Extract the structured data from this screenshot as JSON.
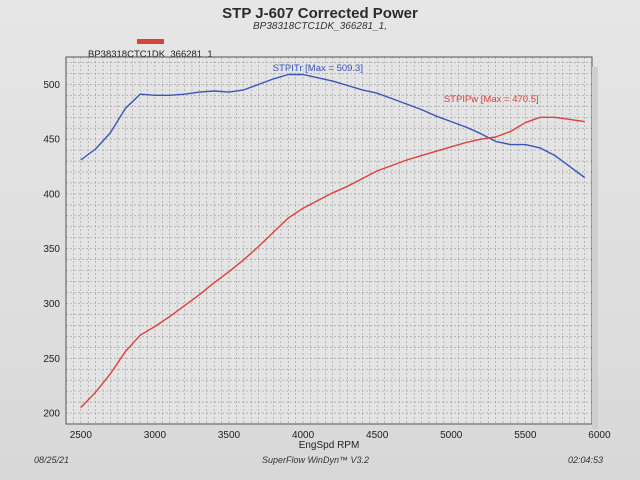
{
  "header": {
    "title": "STP J-607 Corrected Power",
    "subtitle": "BP38318CTC1DK_366281_1,"
  },
  "legend": {
    "run_label": "BP38318CTC1DK_366281_1",
    "run_color": "#d9413d"
  },
  "footer": {
    "date": "08/25/21",
    "software": "SuperFlow WinDyn™ V3.2",
    "time": "02:04:53"
  },
  "colors": {
    "torque": "#3a55b8",
    "power": "#d9413d",
    "grid": "#9a9a9a",
    "frame": "#555555"
  },
  "chart_data": {
    "type": "line",
    "xlabel": "EngSpd RPM",
    "ylabel": "",
    "xlim": [
      2400,
      5950
    ],
    "ylim": [
      190,
      525
    ],
    "x_ticks": [
      2500,
      3000,
      3500,
      4000,
      4500,
      5000,
      5500,
      6000
    ],
    "y_ticks": [
      200,
      250,
      300,
      350,
      400,
      450,
      500
    ],
    "grid": true,
    "series": [
      {
        "name": "STPITr",
        "annotation": "STPITr [Max = 509.3]",
        "color": "#3a55b8",
        "label_x": 4100,
        "label_y": 512,
        "x": [
          2500,
          2600,
          2700,
          2800,
          2900,
          3000,
          3100,
          3200,
          3300,
          3400,
          3500,
          3600,
          3700,
          3800,
          3900,
          4000,
          4100,
          4200,
          4300,
          4400,
          4500,
          4600,
          4700,
          4800,
          4900,
          5000,
          5100,
          5200,
          5300,
          5400,
          5500,
          5600,
          5700,
          5800,
          5900
        ],
        "y": [
          431,
          441,
          456,
          478,
          491,
          490,
          490,
          491,
          493,
          494,
          493,
          495,
          500,
          505,
          509,
          509,
          506,
          503,
          499,
          495,
          492,
          487,
          482,
          477,
          471,
          466,
          461,
          455,
          448,
          445,
          445,
          442,
          435,
          425,
          415
        ]
      },
      {
        "name": "STPIPw",
        "annotation": "STPIPw [Max = 470.5]",
        "color": "#d9413d",
        "label_x": 5270,
        "label_y": 484,
        "x": [
          2500,
          2600,
          2700,
          2800,
          2900,
          3000,
          3100,
          3200,
          3300,
          3400,
          3500,
          3600,
          3700,
          3800,
          3900,
          4000,
          4100,
          4200,
          4300,
          4400,
          4500,
          4600,
          4700,
          4800,
          4900,
          5000,
          5100,
          5200,
          5300,
          5400,
          5500,
          5600,
          5700,
          5800,
          5900
        ],
        "y": [
          205,
          219,
          236,
          256,
          271,
          279,
          288,
          298,
          308,
          319,
          329,
          340,
          352,
          365,
          378,
          387,
          394,
          401,
          407,
          414,
          421,
          426,
          431,
          435,
          439,
          443,
          447,
          450,
          452,
          457,
          465,
          470,
          470,
          468,
          466
        ]
      }
    ]
  }
}
